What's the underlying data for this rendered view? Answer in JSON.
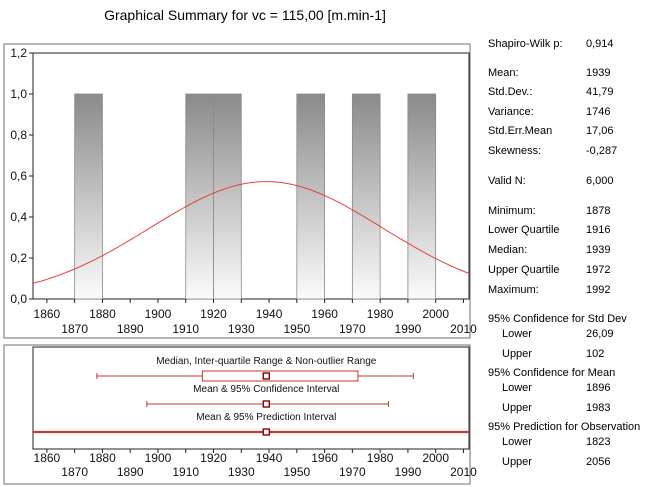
{
  "title": "Graphical Summary for vc = 115,00 [m.min-1]",
  "chart_data": [
    {
      "type": "bar",
      "subtype": "histogram",
      "bins": [
        {
          "from": 1870,
          "to": 1880,
          "value": 1
        },
        {
          "from": 1910,
          "to": 1920,
          "value": 1
        },
        {
          "from": 1920,
          "to": 1930,
          "value": 1
        },
        {
          "from": 1950,
          "to": 1960,
          "value": 1
        },
        {
          "from": 1970,
          "to": 1980,
          "value": 1
        },
        {
          "from": 1990,
          "to": 2000,
          "value": 1
        }
      ],
      "normal_curve": {
        "mean": 1939,
        "sd": 41.79,
        "color": "#e8413a"
      },
      "xlim": [
        1855,
        2012
      ],
      "ylim": [
        0,
        1.2
      ],
      "yticks": [
        "0,0",
        "0,2",
        "0,4",
        "0,6",
        "0,8",
        "1,0",
        "1,2"
      ],
      "yticks_values": [
        0,
        0.2,
        0.4,
        0.6,
        0.8,
        1.0,
        1.2
      ],
      "xticks_top": [
        "1860",
        "1880",
        "1900",
        "1920",
        "1940",
        "1960",
        "1980",
        "2000"
      ],
      "xticks_top_values": [
        1860,
        1880,
        1900,
        1920,
        1940,
        1960,
        1980,
        2000
      ],
      "xticks_bottom": [
        "1870",
        "1890",
        "1910",
        "1930",
        "1950",
        "1970",
        "1990",
        "2010"
      ],
      "xticks_bottom_values": [
        1870,
        1890,
        1910,
        1930,
        1950,
        1970,
        1990,
        2010
      ],
      "bar_color": "#8c8c8c"
    },
    {
      "type": "box",
      "xlim": [
        1855,
        2012
      ],
      "items": [
        {
          "label": "Median, Inter-quartile Range & Non-outlier Range",
          "center": 1939,
          "box": [
            1916,
            1972
          ],
          "whiskers": [
            1878,
            1992
          ]
        },
        {
          "label": "Mean & 95% Confidence Interval",
          "center": 1939,
          "whiskers": [
            1896,
            1983
          ]
        },
        {
          "label": "Mean & 95% Prediction Interval",
          "center": 1939,
          "whiskers": [
            1823,
            2056
          ]
        }
      ],
      "line_color": "#c0392b",
      "xticks_top": [
        "1860",
        "1880",
        "1900",
        "1920",
        "1940",
        "1960",
        "1980",
        "2000"
      ],
      "xticks_top_values": [
        1860,
        1880,
        1900,
        1920,
        1940,
        1960,
        1980,
        2000
      ],
      "xticks_bottom": [
        "1870",
        "1890",
        "1910",
        "1930",
        "1950",
        "1970",
        "1990",
        "2010"
      ],
      "xticks_bottom_values": [
        1870,
        1890,
        1910,
        1930,
        1950,
        1970,
        1990,
        2010
      ]
    }
  ],
  "stats": {
    "shapiro_label": "Shapiro-Wilk p:",
    "shapiro_value": "0,914",
    "mean_label": "Mean:",
    "mean_value": "1939",
    "sd_label": "Std.Dev.:",
    "sd_value": "41,79",
    "var_label": "Variance:",
    "var_value": "1746",
    "sem_label": "Std.Err.Mean",
    "sem_value": "17,06",
    "skew_label": "Skewness:",
    "skew_value": "-0,287",
    "n_label": "Valid N:",
    "n_value": "6,000",
    "min_label": "Minimum:",
    "min_value": "1878",
    "lq_label": "Lower Quartile",
    "lq_value": "1916",
    "median_label": "Median:",
    "median_value": "1939",
    "uq_label": "Upper Quartile",
    "uq_value": "1972",
    "max_label": "Maximum:",
    "max_value": "1992",
    "ci_sd_header": "95% Confidence for Std Dev",
    "ci_sd_lower_label": "Lower",
    "ci_sd_lower_value": "26,09",
    "ci_sd_upper_label": "Upper",
    "ci_sd_upper_value": "102",
    "ci_mean_header": "95% Confidence for Mean",
    "ci_mean_lower_label": "Lower",
    "ci_mean_lower_value": "1896",
    "ci_mean_upper_label": "Upper",
    "ci_mean_upper_value": "1983",
    "pi_header": "95% Prediction for Observation",
    "pi_lower_label": "Lower",
    "pi_lower_value": "1823",
    "pi_upper_label": "Upper",
    "pi_upper_value": "2056"
  }
}
